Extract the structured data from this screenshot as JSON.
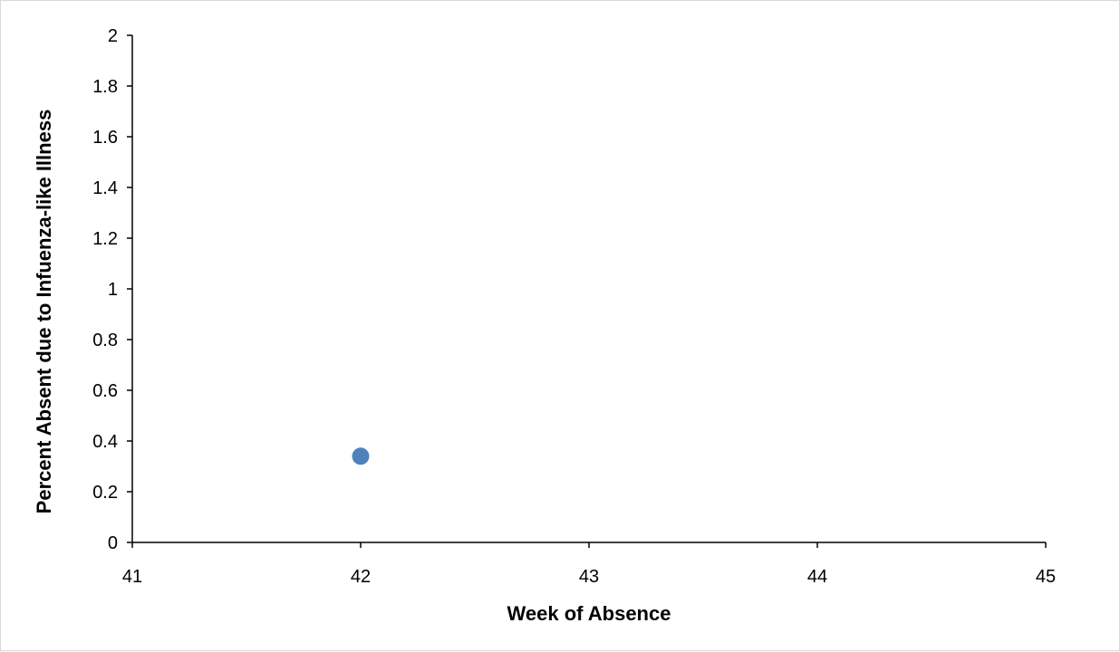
{
  "chart_data": {
    "type": "scatter",
    "title": "",
    "xlabel": "Week of Absence",
    "ylabel": "Percent Absent  due to Infuenza-like Illness",
    "xlim": [
      41,
      45
    ],
    "ylim": [
      0,
      2
    ],
    "x_ticks": [
      "41",
      "42",
      "43",
      "44",
      "45"
    ],
    "y_ticks": [
      "0",
      "0.2",
      "0.4",
      "0.6",
      "0.8",
      "1",
      "1.2",
      "1.4",
      "1.6",
      "1.8",
      "2"
    ],
    "grid": false,
    "legend": "none",
    "series": [
      {
        "color": "#4f81bd",
        "points": [
          {
            "x": 42,
            "y": 0.34
          }
        ]
      }
    ]
  }
}
